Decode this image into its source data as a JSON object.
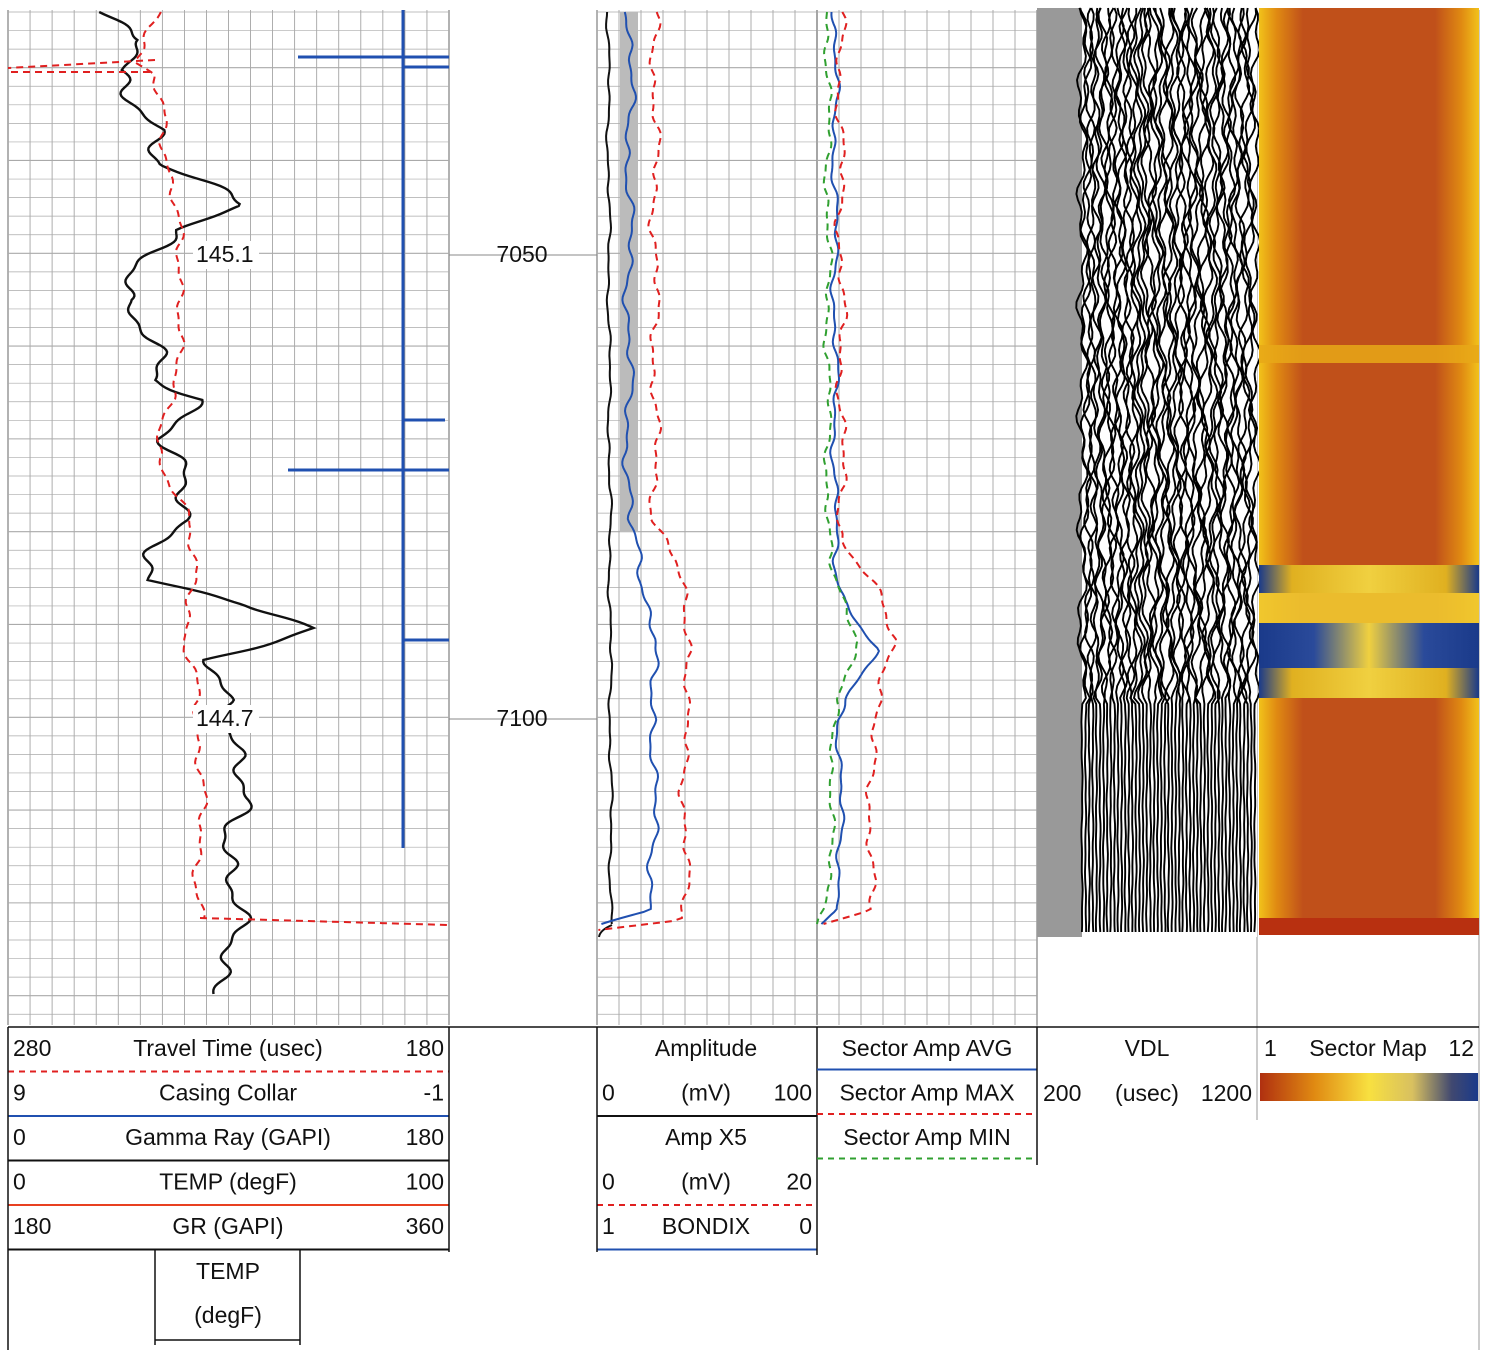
{
  "depth_labels": [
    "7050",
    "7100"
  ],
  "annotations": [
    "145.1",
    "144.7"
  ],
  "track1_legend": [
    {
      "left": "280",
      "name": "Travel Time (usec)",
      "right": "180"
    },
    {
      "left": "9",
      "name": "Casing Collar",
      "right": "-1"
    },
    {
      "left": "0",
      "name": "Gamma Ray (GAPI)",
      "right": "180"
    },
    {
      "left": "0",
      "name": "TEMP (degF)",
      "right": "100"
    },
    {
      "left": "180",
      "name": "GR (GAPI)",
      "right": "360"
    }
  ],
  "track1_extra": [
    "TEMP",
    "(degF)"
  ],
  "track2_legend": [
    {
      "name": "Amplitude"
    },
    {
      "left": "0",
      "name": "(mV)",
      "right": "100"
    },
    {
      "name": "Amp X5"
    },
    {
      "left": "0",
      "name": "(mV)",
      "right": "20"
    },
    {
      "left": "1",
      "name": "BONDIX",
      "right": "0"
    }
  ],
  "track3_legend": [
    "Sector Amp AVG",
    "Sector Amp MAX",
    "Sector Amp MIN"
  ],
  "vdl_legend": {
    "name": "VDL",
    "left": "200",
    "unit": "(usec)",
    "right": "1200"
  },
  "sector_map_legend": {
    "left": "1",
    "name": "Sector Map",
    "right": "12"
  }
}
